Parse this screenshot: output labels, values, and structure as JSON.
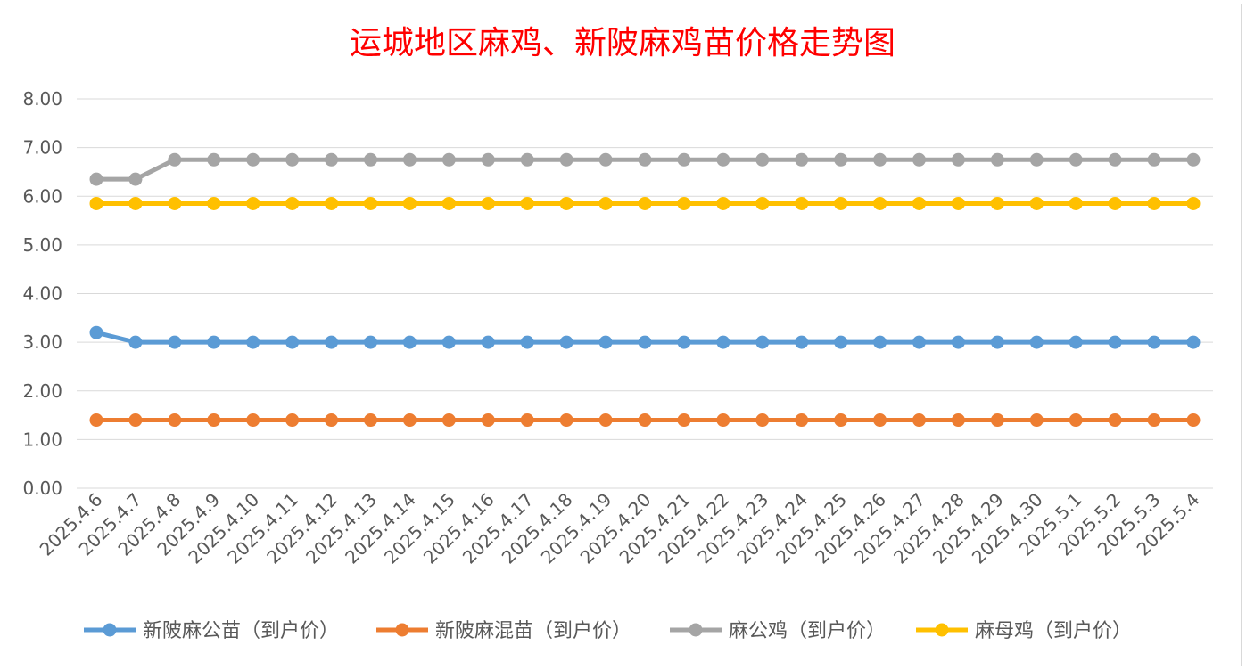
{
  "chart_data": {
    "type": "line",
    "title": "运城地区麻鸡、新陂麻鸡苗价格走势图",
    "xlabel": "",
    "ylabel": "",
    "ylim": [
      0,
      8
    ],
    "yticks": [
      "0.00",
      "1.00",
      "2.00",
      "3.00",
      "4.00",
      "5.00",
      "6.00",
      "7.00",
      "8.00"
    ],
    "grid": true,
    "legend_position": "bottom",
    "categories": [
      "2025.4.6",
      "2025.4.7",
      "2025.4.8",
      "2025.4.9",
      "2025.4.10",
      "2025.4.11",
      "2025.4.12",
      "2025.4.13",
      "2025.4.14",
      "2025.4.15",
      "2025.4.16",
      "2025.4.17",
      "2025.4.18",
      "2025.4.19",
      "2025.4.20",
      "2025.4.21",
      "2025.4.22",
      "2025.4.23",
      "2025.4.24",
      "2025.4.25",
      "2025.4.26",
      "2025.4.27",
      "2025.4.28",
      "2025.4.29",
      "2025.4.30",
      "2025.5.1",
      "2025.5.2",
      "2025.5.3",
      "2025.5.4"
    ],
    "series": [
      {
        "name": "新陂麻公苗（到户价）",
        "color": "#5b9bd5",
        "values": [
          3.2,
          3.0,
          3.0,
          3.0,
          3.0,
          3.0,
          3.0,
          3.0,
          3.0,
          3.0,
          3.0,
          3.0,
          3.0,
          3.0,
          3.0,
          3.0,
          3.0,
          3.0,
          3.0,
          3.0,
          3.0,
          3.0,
          3.0,
          3.0,
          3.0,
          3.0,
          3.0,
          3.0,
          3.0
        ]
      },
      {
        "name": "新陂麻混苗（到户价）",
        "color": "#ed7d31",
        "values": [
          1.4,
          1.4,
          1.4,
          1.4,
          1.4,
          1.4,
          1.4,
          1.4,
          1.4,
          1.4,
          1.4,
          1.4,
          1.4,
          1.4,
          1.4,
          1.4,
          1.4,
          1.4,
          1.4,
          1.4,
          1.4,
          1.4,
          1.4,
          1.4,
          1.4,
          1.4,
          1.4,
          1.4,
          1.4
        ]
      },
      {
        "name": "麻公鸡（到户价）",
        "color": "#a5a5a5",
        "values": [
          6.35,
          6.35,
          6.75,
          6.75,
          6.75,
          6.75,
          6.75,
          6.75,
          6.75,
          6.75,
          6.75,
          6.75,
          6.75,
          6.75,
          6.75,
          6.75,
          6.75,
          6.75,
          6.75,
          6.75,
          6.75,
          6.75,
          6.75,
          6.75,
          6.75,
          6.75,
          6.75,
          6.75,
          6.75
        ]
      },
      {
        "name": "麻母鸡（到户价）",
        "color": "#ffc000",
        "values": [
          5.85,
          5.85,
          5.85,
          5.85,
          5.85,
          5.85,
          5.85,
          5.85,
          5.85,
          5.85,
          5.85,
          5.85,
          5.85,
          5.85,
          5.85,
          5.85,
          5.85,
          5.85,
          5.85,
          5.85,
          5.85,
          5.85,
          5.85,
          5.85,
          5.85,
          5.85,
          5.85,
          5.85,
          5.85
        ]
      }
    ]
  }
}
